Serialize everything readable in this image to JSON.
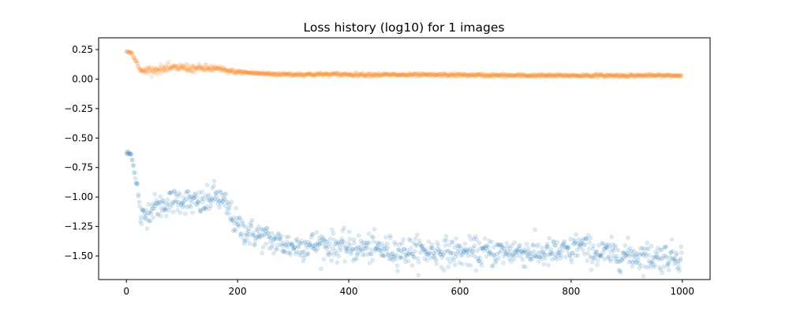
{
  "chart_data": {
    "type": "scatter",
    "title": "Loss history (log10) for 1 images",
    "xlabel": "",
    "ylabel": "",
    "xlim": [
      -50,
      1050
    ],
    "ylim": [
      -1.7,
      0.35
    ],
    "xticks": [
      0,
      200,
      400,
      600,
      800,
      1000
    ],
    "xtick_labels": [
      "0",
      "200",
      "400",
      "600",
      "800",
      "1000"
    ],
    "yticks": [
      0.25,
      0.0,
      -0.25,
      -0.5,
      -0.75,
      -1.0,
      -1.25,
      -1.5
    ],
    "ytick_labels": [
      "0.25",
      "0.00",
      "−0.25",
      "−0.50",
      "−0.75",
      "−1.00",
      "−1.25",
      "−1.50"
    ],
    "grid": false,
    "legend": "none",
    "n_points": 1000,
    "marker_alpha": 0.15,
    "series": [
      {
        "color": "#1f77b4",
        "trend": {
          "x": [
            0,
            5,
            10,
            15,
            20,
            25,
            30,
            40,
            50,
            60,
            80,
            100,
            120,
            140,
            160,
            180,
            200,
            220,
            240,
            260,
            300,
            350,
            400,
            450,
            500,
            550,
            600,
            650,
            700,
            750,
            780,
            800,
            810,
            830,
            850,
            900,
            950,
            1000
          ],
          "y": [
            -0.63,
            -0.63,
            -0.65,
            -0.8,
            -0.92,
            -1.17,
            -1.17,
            -1.12,
            -1.08,
            -1.08,
            -1.04,
            -1.02,
            -1.05,
            -1.06,
            -0.98,
            -1.08,
            -1.25,
            -1.3,
            -1.33,
            -1.37,
            -1.42,
            -1.4,
            -1.43,
            -1.44,
            -1.46,
            -1.46,
            -1.47,
            -1.47,
            -1.46,
            -1.48,
            -1.47,
            -1.47,
            -1.4,
            -1.45,
            -1.48,
            -1.49,
            -1.51,
            -1.5
          ]
        },
        "noise": [
          [
            0,
            0.01
          ],
          [
            15,
            0.02
          ],
          [
            25,
            0.05
          ],
          [
            200,
            0.06
          ],
          [
            400,
            0.06
          ],
          [
            1000,
            0.06
          ]
        ]
      },
      {
        "color": "#ff7f0e",
        "trend": {
          "x": [
            0,
            5,
            10,
            15,
            20,
            25,
            30,
            40,
            60,
            80,
            100,
            120,
            140,
            160,
            180,
            200,
            250,
            300,
            400,
            500,
            600,
            700,
            800,
            900,
            1000
          ],
          "y": [
            0.23,
            0.23,
            0.22,
            0.17,
            0.12,
            0.07,
            0.07,
            0.08,
            0.08,
            0.09,
            0.1,
            0.09,
            0.09,
            0.09,
            0.07,
            0.06,
            0.045,
            0.04,
            0.04,
            0.035,
            0.035,
            0.03,
            0.03,
            0.03,
            0.03
          ]
        },
        "noise": [
          [
            0,
            0.003
          ],
          [
            25,
            0.01
          ],
          [
            60,
            0.018
          ],
          [
            160,
            0.015
          ],
          [
            200,
            0.008
          ],
          [
            1000,
            0.006
          ]
        ]
      }
    ]
  }
}
